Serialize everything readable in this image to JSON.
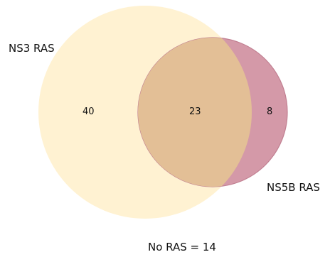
{
  "diagram": {
    "type": "venn",
    "sets": [
      {
        "name": "NS3 RAS",
        "color": "#fff2d2"
      },
      {
        "name": "NS5B RAS",
        "color": "#d499a8"
      }
    ],
    "intersection_color": "#e3bf96",
    "regions": {
      "only_ns3": "40",
      "both": "23",
      "only_ns5b": "8"
    },
    "note": "No RAS = 14"
  }
}
